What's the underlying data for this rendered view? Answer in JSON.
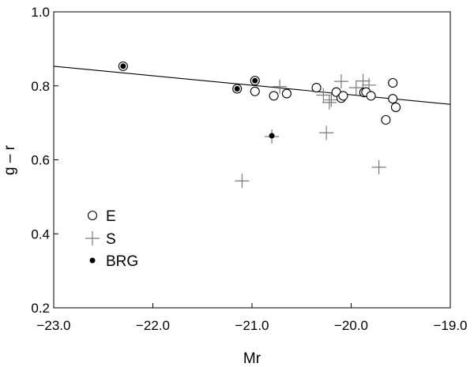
{
  "chart_data": {
    "type": "scatter",
    "title": "",
    "xlabel": "Mr",
    "ylabel": "g – r",
    "xlim": [
      -23.0,
      -19.0
    ],
    "ylim": [
      0.2,
      1.0
    ],
    "x_ticks": [
      "−23.0",
      "−22.0",
      "−21.0",
      "−20.0",
      "−19.0"
    ],
    "y_ticks": [
      "0.2",
      "0.4",
      "0.6",
      "0.8",
      "1.0"
    ],
    "grid": false,
    "legend_position": "lower-left",
    "fit_line": {
      "x": [
        -23.0,
        -19.0
      ],
      "y": [
        0.853,
        0.75
      ]
    },
    "series": [
      {
        "name": "E",
        "marker": "open-circle",
        "points": [
          {
            "x": -22.3,
            "y": 0.853
          },
          {
            "x": -21.15,
            "y": 0.792
          },
          {
            "x": -20.97,
            "y": 0.814
          },
          {
            "x": -20.97,
            "y": 0.785
          },
          {
            "x": -20.78,
            "y": 0.773
          },
          {
            "x": -20.65,
            "y": 0.779
          },
          {
            "x": -20.35,
            "y": 0.795
          },
          {
            "x": -20.15,
            "y": 0.783
          },
          {
            "x": -20.1,
            "y": 0.767
          },
          {
            "x": -20.08,
            "y": 0.773
          },
          {
            "x": -19.87,
            "y": 0.782
          },
          {
            "x": -19.85,
            "y": 0.783
          },
          {
            "x": -19.8,
            "y": 0.773
          },
          {
            "x": -19.65,
            "y": 0.708
          },
          {
            "x": -19.58,
            "y": 0.808
          },
          {
            "x": -19.58,
            "y": 0.765
          },
          {
            "x": -19.55,
            "y": 0.742
          }
        ]
      },
      {
        "name": "S",
        "marker": "plus",
        "points": [
          {
            "x": -21.1,
            "y": 0.543
          },
          {
            "x": -20.8,
            "y": 0.663
          },
          {
            "x": -20.72,
            "y": 0.798
          },
          {
            "x": -20.28,
            "y": 0.775
          },
          {
            "x": -20.25,
            "y": 0.673
          },
          {
            "x": -20.22,
            "y": 0.755
          },
          {
            "x": -20.2,
            "y": 0.762
          },
          {
            "x": -20.1,
            "y": 0.812
          },
          {
            "x": -19.95,
            "y": 0.795
          },
          {
            "x": -19.88,
            "y": 0.813
          },
          {
            "x": -19.82,
            "y": 0.802
          },
          {
            "x": -19.72,
            "y": 0.58
          }
        ]
      },
      {
        "name": "BRG",
        "marker": "filled-circle",
        "points": [
          {
            "x": -22.3,
            "y": 0.853
          },
          {
            "x": -21.15,
            "y": 0.792
          },
          {
            "x": -20.97,
            "y": 0.814
          },
          {
            "x": -20.8,
            "y": 0.665
          }
        ]
      }
    ]
  }
}
